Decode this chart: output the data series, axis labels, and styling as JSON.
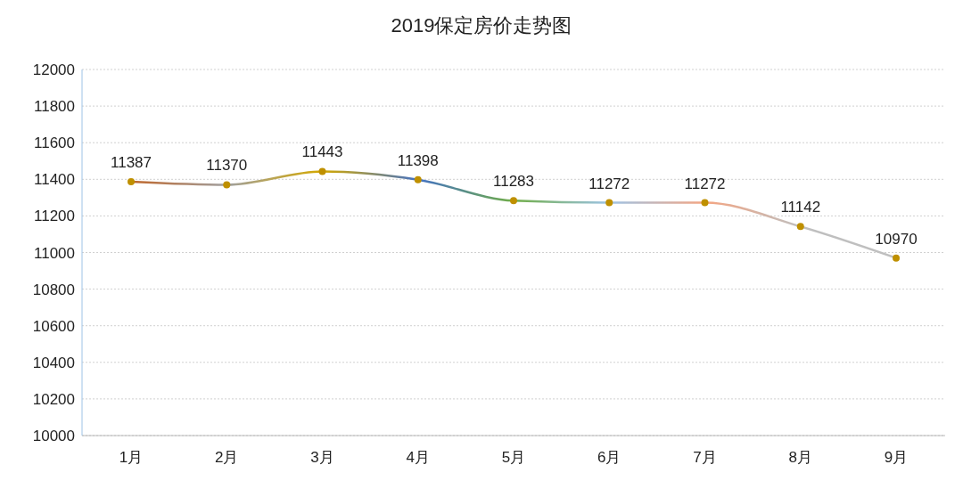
{
  "chart_data": {
    "type": "line",
    "title": "2019保定房价走势图",
    "categories": [
      "1月",
      "2月",
      "3月",
      "4月",
      "5月",
      "6月",
      "7月",
      "8月",
      "9月"
    ],
    "series": [
      {
        "color": "#bf9000",
        "colors": [
          "#c0672b",
          "#a0a0a0",
          "#d4a800",
          "#4472c4",
          "#70ad47",
          "#9dc3e6",
          "#f4a582",
          "#bfbfbf",
          "#bfbfbf"
        ],
        "values": [
          11387,
          11370,
          11443,
          11398,
          11283,
          11272,
          11272,
          11142,
          10970
        ]
      }
    ],
    "ylim": [
      10000,
      12000
    ],
    "yticks": [
      10000,
      10200,
      10400,
      10600,
      10800,
      11000,
      11200,
      11400,
      11600,
      11800,
      12000
    ],
    "grid": "y",
    "marker": "circle",
    "data_labels": true
  }
}
